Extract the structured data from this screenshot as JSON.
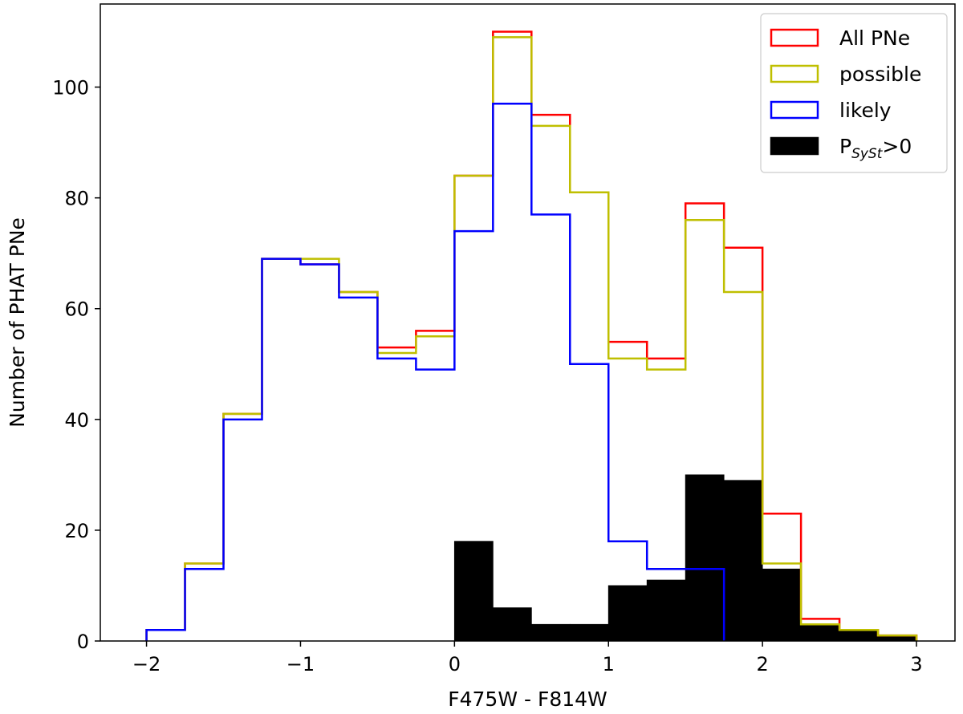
{
  "chart_data": {
    "type": "histogram",
    "xlabel": "F475W - F814W",
    "ylabel": "Number of PHAT PNe",
    "xlim": [
      -2.3,
      3.25
    ],
    "ylim": [
      0,
      115
    ],
    "xticks": [
      -2,
      -1,
      0,
      1,
      2,
      3
    ],
    "xtick_labels": [
      "−2",
      "−1",
      "0",
      "1",
      "2",
      "3"
    ],
    "yticks": [
      0,
      20,
      40,
      60,
      80,
      100
    ],
    "ytick_labels": [
      "0",
      "20",
      "40",
      "60",
      "80",
      "100"
    ],
    "grid": false,
    "legend_position": "top-right",
    "bin_edges": [
      -2.0,
      -1.75,
      -1.5,
      -1.25,
      -1.0,
      -0.75,
      -0.5,
      -0.25,
      0.0,
      0.25,
      0.5,
      0.75,
      1.0,
      1.25,
      1.5,
      1.75,
      2.0,
      2.25,
      2.5,
      2.75,
      3.0
    ],
    "series": [
      {
        "name": "All PNe",
        "style": "step",
        "color": "#ff0000",
        "values": [
          2,
          14,
          41,
          69,
          68,
          63,
          53,
          56,
          84,
          110,
          95,
          81,
          54,
          51,
          79,
          71,
          23,
          4,
          2,
          1
        ]
      },
      {
        "name": "possible",
        "style": "step",
        "color": "#bfbf00",
        "values": [
          2,
          14,
          41,
          69,
          69,
          63,
          52,
          55,
          84,
          109,
          93,
          81,
          51,
          49,
          76,
          63,
          14,
          3,
          2,
          1
        ]
      },
      {
        "name": "likely",
        "style": "step",
        "color": "#0000ff",
        "values": [
          2,
          13,
          40,
          69,
          68,
          62,
          51,
          49,
          74,
          97,
          77,
          50,
          18,
          13,
          13,
          0,
          0,
          0,
          0,
          0
        ]
      },
      {
        "name": "P",
        "name_sub": "SySt",
        "name_suffix": ">0",
        "style": "filled",
        "color": "#000000",
        "values": [
          0,
          0,
          0,
          0,
          0,
          0,
          0,
          0,
          18,
          6,
          3,
          3,
          10,
          11,
          30,
          29,
          13,
          3,
          2,
          1
        ]
      }
    ]
  }
}
